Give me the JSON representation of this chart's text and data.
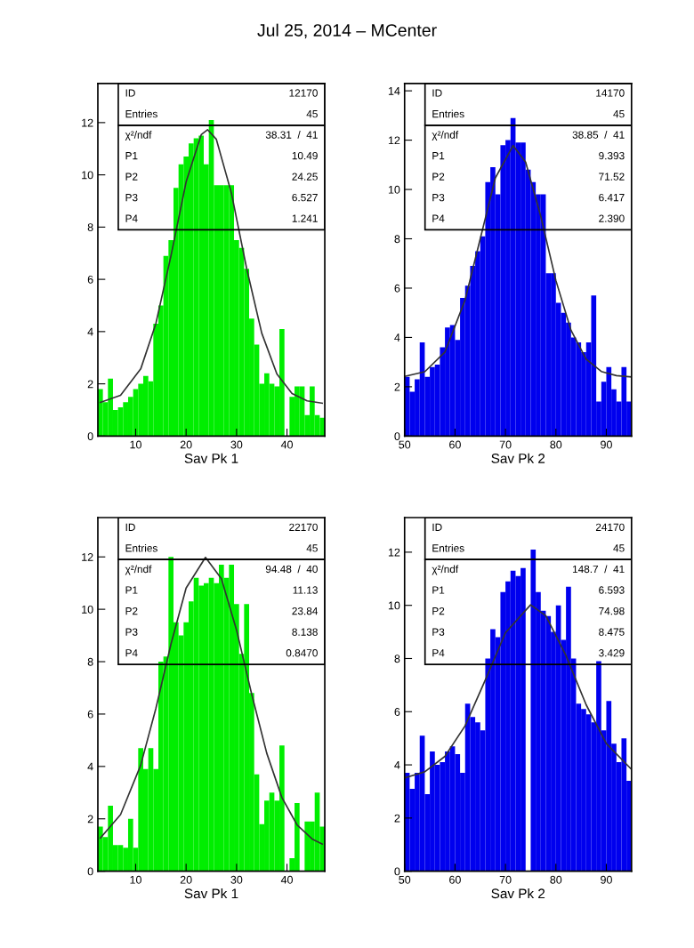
{
  "chart_data": [
    {
      "type": "histogram",
      "title": "Jul 25, 2014 – MCenter",
      "xlabel": "Sav Pk 1",
      "bins": [
        2.5,
        3.5,
        4.5,
        5.5,
        6.5,
        7.5,
        8.5,
        9.5,
        10.5,
        11.5,
        12.5,
        13.5,
        14.5,
        15.5,
        16.5,
        17.5,
        18.5,
        19.5,
        20.5,
        21.5,
        22.5,
        23.5,
        24.5,
        25.5,
        26.5,
        27.5,
        28.5,
        29.5,
        30.5,
        31.5,
        32.5,
        33.5,
        34.5,
        35.5,
        36.5,
        37.5,
        38.5,
        39.5,
        40.5,
        41.5,
        42.5,
        43.5,
        44.5,
        45.5,
        46.5,
        47.5
      ],
      "series": [
        {
          "type": "histogram",
          "color": "#00ee00",
          "values": [
            1.8,
            1.3,
            2.2,
            1.0,
            1.1,
            1.3,
            1.5,
            1.8,
            2.0,
            2.3,
            2.1,
            4.3,
            5.0,
            6.9,
            7.5,
            9.5,
            10.4,
            10.7,
            11.2,
            11.4,
            11.5,
            10.4,
            12.1,
            9.6,
            9.6,
            9.6,
            9.6,
            7.5,
            7.2,
            6.4,
            4.5,
            3.5,
            2.0,
            2.4,
            2.0,
            1.9,
            4.1,
            0.0,
            1.5,
            1.9,
            1.9,
            0.8,
            1.9,
            0.8,
            0.7
          ]
        },
        {
          "type": "line",
          "color": "#333333",
          "x": [
            3,
            7,
            11,
            14,
            17,
            20,
            23,
            24.25,
            26,
            29,
            32,
            35,
            38,
            41,
            44,
            47
          ],
          "values": [
            1.29,
            1.56,
            2.57,
            4.3,
            6.9,
            9.73,
            11.54,
            11.73,
            11.36,
            9.29,
            6.42,
            3.94,
            2.38,
            1.63,
            1.35,
            1.26
          ]
        }
      ],
      "xlim": [
        2.5,
        47.5
      ],
      "xticks": [
        10,
        20,
        30,
        40
      ],
      "ylim": [
        0,
        13.5
      ],
      "yticks": [
        0,
        2,
        4,
        6,
        8,
        10,
        12
      ],
      "annotations": [
        "ID",
        "12170",
        "Entries",
        "45",
        "χ²/ndf",
        "38.31  /  41",
        "P1",
        "10.49",
        "P2",
        "24.25",
        "P3",
        "6.527",
        "P4",
        "1.241"
      ]
    },
    {
      "type": "histogram",
      "xlabel": "Sav Pk 2",
      "bins": [
        50,
        51,
        52,
        53,
        54,
        55,
        56,
        57,
        58,
        59,
        60,
        61,
        62,
        63,
        64,
        65,
        66,
        67,
        68,
        69,
        70,
        71,
        72,
        73,
        74,
        75,
        76,
        77,
        78,
        79,
        80,
        81,
        82,
        83,
        84,
        85,
        86,
        87,
        88,
        89,
        90,
        91,
        92,
        93,
        94,
        95
      ],
      "series": [
        {
          "type": "histogram",
          "color": "#0000ee",
          "values": [
            2.4,
            1.8,
            2.3,
            3.8,
            2.4,
            2.8,
            2.9,
            3.6,
            4.4,
            4.5,
            3.9,
            5.6,
            6.1,
            6.9,
            7.5,
            8.1,
            10.3,
            10.9,
            9.8,
            11.8,
            12.0,
            12.9,
            11.9,
            11.9,
            10.8,
            10.3,
            9.8,
            9.8,
            6.6,
            6.6,
            5.4,
            5.0,
            4.6,
            4.0,
            3.8,
            3.4,
            3.8,
            5.7,
            1.4,
            2.2,
            2.8,
            1.9,
            1.4,
            2.8,
            1.4
          ]
        },
        {
          "type": "line",
          "color": "#333333",
          "x": [
            50,
            54,
            58,
            62,
            65,
            68,
            71.52,
            74,
            77,
            80,
            83,
            86,
            89,
            92,
            95
          ],
          "values": [
            2.42,
            2.61,
            3.41,
            5.52,
            8.0,
            10.47,
            11.78,
            11.11,
            8.91,
            6.31,
            4.29,
            3.12,
            2.62,
            2.45,
            2.4
          ]
        }
      ],
      "xlim": [
        50,
        95
      ],
      "xticks": [
        50,
        60,
        70,
        80,
        90
      ],
      "ylim": [
        0,
        14.3
      ],
      "yticks": [
        0,
        2,
        4,
        6,
        8,
        10,
        12,
        14
      ],
      "annotations": [
        "ID",
        "14170",
        "Entries",
        "45",
        "χ²/ndf",
        "38.85  /  41",
        "P1",
        "9.393",
        "P2",
        "71.52",
        "P3",
        "6.417",
        "P4",
        "2.390"
      ]
    },
    {
      "type": "histogram",
      "xlabel": "Sav Pk 1",
      "bins": [
        2.5,
        3.5,
        4.5,
        5.5,
        6.5,
        7.5,
        8.5,
        9.5,
        10.5,
        11.5,
        12.5,
        13.5,
        14.5,
        15.5,
        16.5,
        17.5,
        18.5,
        19.5,
        20.5,
        21.5,
        22.5,
        23.5,
        24.5,
        25.5,
        26.5,
        27.5,
        28.5,
        29.5,
        30.5,
        31.5,
        32.5,
        33.5,
        34.5,
        35.5,
        36.5,
        37.5,
        38.5,
        39.5,
        40.5,
        41.5,
        42.5,
        43.5,
        44.5,
        45.5,
        46.5,
        47.5
      ],
      "series": [
        {
          "type": "histogram",
          "color": "#00ee00",
          "values": [
            1.7,
            1.3,
            2.5,
            1.0,
            1.0,
            0.9,
            2.0,
            0.9,
            4.7,
            3.9,
            4.7,
            3.9,
            8.0,
            8.2,
            12.0,
            9.5,
            9.0,
            9.5,
            10.3,
            11.2,
            10.9,
            11.0,
            11.2,
            11.0,
            11.7,
            11.2,
            11.7,
            10.2,
            8.3,
            10.2,
            6.8,
            3.7,
            1.8,
            2.7,
            3.0,
            2.7,
            4.8,
            0.0,
            0.5,
            2.6,
            0.0,
            1.9,
            1.9,
            3.0,
            1.7
          ]
        },
        {
          "type": "line",
          "color": "#333333",
          "x": [
            3,
            7,
            11,
            14,
            17,
            20,
            23.84,
            27,
            30,
            33,
            36,
            39,
            42,
            45,
            47
          ],
          "values": [
            1.27,
            2.16,
            4.05,
            6.21,
            8.67,
            10.81,
            11.98,
            11.17,
            9.21,
            6.76,
            4.5,
            2.81,
            1.77,
            1.23,
            1.04
          ]
        }
      ],
      "xlim": [
        2.5,
        47.5
      ],
      "xticks": [
        10,
        20,
        30,
        40
      ],
      "ylim": [
        0,
        13.5
      ],
      "yticks": [
        0,
        2,
        4,
        6,
        8,
        10,
        12
      ],
      "annotations": [
        "ID",
        "22170",
        "Entries",
        "45",
        "χ²/ndf",
        "94.48  /  40",
        "P1",
        "11.13",
        "P2",
        "23.84",
        "P3",
        "8.138",
        "P4",
        "0.8470"
      ]
    },
    {
      "type": "histogram",
      "xlabel": "Sav Pk 2",
      "bins": [
        50,
        51,
        52,
        53,
        54,
        55,
        56,
        57,
        58,
        59,
        60,
        61,
        62,
        63,
        64,
        65,
        66,
        67,
        68,
        69,
        70,
        71,
        72,
        73,
        74,
        75,
        76,
        77,
        78,
        79,
        80,
        81,
        82,
        83,
        84,
        85,
        86,
        87,
        88,
        89,
        90,
        91,
        92,
        93,
        94,
        95
      ],
      "series": [
        {
          "type": "histogram",
          "color": "#0000ee",
          "values": [
            3.7,
            3.1,
            3.7,
            5.1,
            2.9,
            4.5,
            4.0,
            4.1,
            4.5,
            4.7,
            4.4,
            3.7,
            6.3,
            5.8,
            5.6,
            5.3,
            8.0,
            9.1,
            8.8,
            10.5,
            10.9,
            11.3,
            11.1,
            11.4,
            0.0,
            12.1,
            10.5,
            9.8,
            9.6,
            9.0,
            10.0,
            8.7,
            10.7,
            8.0,
            6.3,
            6.1,
            5.9,
            5.6,
            7.9,
            5.3,
            6.4,
            4.8,
            4.1,
            5.0,
            3.4
          ]
        },
        {
          "type": "line",
          "color": "#333333",
          "x": [
            50,
            54,
            58,
            62,
            66,
            70,
            74.98,
            78,
            82,
            86,
            90,
            95
          ],
          "values": [
            3.51,
            3.74,
            4.32,
            5.47,
            7.19,
            8.97,
            10.02,
            9.61,
            8.11,
            6.26,
            4.8,
            3.83
          ]
        }
      ],
      "xlim": [
        50,
        95
      ],
      "xticks": [
        50,
        60,
        70,
        80,
        90
      ],
      "ylim": [
        0,
        13.3
      ],
      "yticks": [
        0,
        2,
        4,
        6,
        8,
        10,
        12
      ],
      "annotations": [
        "ID",
        "24170",
        "Entries",
        "45",
        "χ²/ndf",
        "148.7  /  41",
        "P1",
        "6.593",
        "P2",
        "74.98",
        "P3",
        "8.475",
        "P4",
        "3.429"
      ]
    }
  ]
}
